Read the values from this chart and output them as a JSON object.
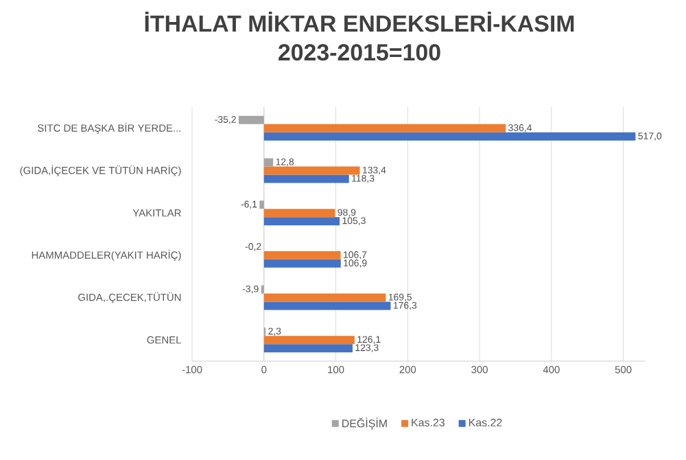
{
  "chart_data": {
    "type": "bar",
    "orientation": "horizontal",
    "title": "İTHALAT MİKTAR ENDEKSLERİ-KASIM 2023-2015=100",
    "categories": [
      "SITC DE BAŞKA BİR YERDE...",
      "(GIDA,İÇECEK VE TÜTÜN HARİÇ)",
      "YAKITLAR",
      "HAMMADDELER(YAKIT HARİÇ)",
      "GIDA,.ÇECEK,TÜTÜN",
      "GENEL"
    ],
    "series": [
      {
        "name": "DEĞİŞİM",
        "color": "#a5a5a5",
        "values": [
          -35.2,
          12.8,
          -6.1,
          -0.2,
          -3.9,
          2.3
        ],
        "value_labels": [
          "-35,2",
          "12,8",
          "-6,1",
          "-0,2",
          "-3,9",
          "2,3"
        ]
      },
      {
        "name": "Kas.23",
        "color": "#ed7d31",
        "values": [
          336.4,
          133.4,
          98.9,
          106.7,
          169.5,
          126.1
        ],
        "value_labels": [
          "336,4",
          "133,4",
          "98,9",
          "106,7",
          "169,5",
          "126,1"
        ]
      },
      {
        "name": "Kas.22",
        "color": "#4472c4",
        "values": [
          517,
          118.3,
          105.3,
          106.9,
          176.3,
          123.3
        ],
        "value_labels": [
          "517,0",
          "118,3",
          "105,3",
          "106,9",
          "176,3",
          "123,3"
        ]
      }
    ],
    "xlim": [
      -100,
      530
    ],
    "xticks": [
      -100,
      0,
      100,
      200,
      300,
      400,
      500
    ],
    "grid": "x",
    "legend": "bottom"
  }
}
